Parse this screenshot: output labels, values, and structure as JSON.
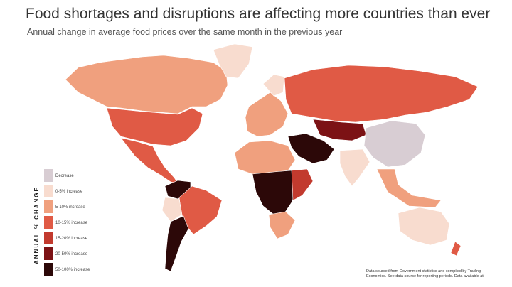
{
  "header": {
    "title": "Food shortages and disruptions are affecting more countries than ever",
    "subtitle": "Annual change in average food prices over the same month in the previous year"
  },
  "legend": {
    "title": "ANNUAL % CHANGE",
    "items": [
      {
        "label": "Decrease",
        "color": "#d8cdd3"
      },
      {
        "label": "0-5% increase",
        "color": "#f8dccf"
      },
      {
        "label": "5-10% increase",
        "color": "#f0a07e"
      },
      {
        "label": "10-15% increase",
        "color": "#e05a45"
      },
      {
        "label": "15-20% increase",
        "color": "#c23a2e"
      },
      {
        "label": "20-50% increase",
        "color": "#7c1215"
      },
      {
        "label": "50-100% increase",
        "color": "#2c0808"
      }
    ]
  },
  "source": {
    "lines": [
      "Data sourced from Government statistics and compiled by Trading",
      "Economics. See data source for reporting periods. Data available at"
    ]
  }
}
